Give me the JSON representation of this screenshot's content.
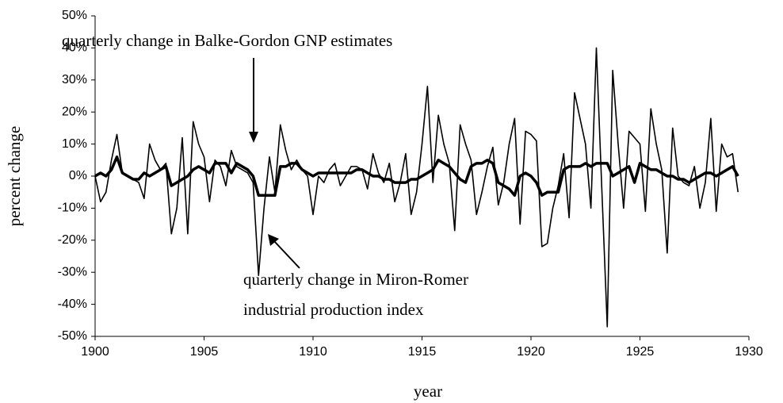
{
  "chart_data": {
    "type": "line",
    "annotations": [
      "quarterly change in Balke-Gordon GNP estimates",
      "quarterly change in Miron-Romer",
      "industrial production index"
    ],
    "xlabel": "year",
    "ylabel": "percent change",
    "xlim": [
      1900,
      1930
    ],
    "xticks": [
      1900,
      1905,
      1910,
      1915,
      1920,
      1925,
      1930
    ],
    "ylim": [
      -50,
      50
    ],
    "yticks": [
      {
        "value": -50,
        "label": "-50%"
      },
      {
        "value": -40,
        "label": "-40%"
      },
      {
        "value": -30,
        "label": "-30%"
      },
      {
        "value": -20,
        "label": "-20%"
      },
      {
        "value": -10,
        "label": "-10%"
      },
      {
        "value": 0,
        "label": "0%"
      },
      {
        "value": 10,
        "label": "10%"
      },
      {
        "value": 20,
        "label": "20%"
      },
      {
        "value": 30,
        "label": "30%"
      },
      {
        "value": 40,
        "label": "40%"
      },
      {
        "value": 50,
        "label": "50%"
      }
    ],
    "x": [
      1900,
      1900.25,
      1900.5,
      1900.75,
      1901,
      1901.25,
      1901.5,
      1901.75,
      1902,
      1902.25,
      1902.5,
      1902.75,
      1903,
      1903.25,
      1903.5,
      1903.75,
      1904,
      1904.25,
      1904.5,
      1904.75,
      1905,
      1905.25,
      1905.5,
      1905.75,
      1906,
      1906.25,
      1906.5,
      1906.75,
      1907,
      1907.25,
      1907.5,
      1907.75,
      1908,
      1908.25,
      1908.5,
      1908.75,
      1909,
      1909.25,
      1909.5,
      1909.75,
      1910,
      1910.25,
      1910.5,
      1910.75,
      1911,
      1911.25,
      1911.5,
      1911.75,
      1912,
      1912.25,
      1912.5,
      1912.75,
      1913,
      1913.25,
      1913.5,
      1913.75,
      1914,
      1914.25,
      1914.5,
      1914.75,
      1915,
      1915.25,
      1915.5,
      1915.75,
      1916,
      1916.25,
      1916.5,
      1916.75,
      1917,
      1917.25,
      1917.5,
      1917.75,
      1918,
      1918.25,
      1918.5,
      1918.75,
      1919,
      1919.25,
      1919.5,
      1919.75,
      1920,
      1920.25,
      1920.5,
      1920.75,
      1921,
      1921.25,
      1921.5,
      1921.75,
      1922,
      1922.25,
      1922.5,
      1922.75,
      1923,
      1923.25,
      1923.5,
      1923.75,
      1924,
      1924.25,
      1924.5,
      1924.75,
      1925,
      1925.25,
      1925.5,
      1925.75,
      1926,
      1926.25,
      1926.5,
      1926.75,
      1927,
      1927.25,
      1927.5,
      1927.75,
      1928,
      1928.25,
      1928.5,
      1928.75,
      1929,
      1929.25,
      1929.5
    ],
    "series": [
      {
        "color": "#000000",
        "width": 1.6,
        "values": [
          0,
          -8,
          -5,
          5,
          13,
          1,
          0,
          -1,
          -2,
          -7,
          10,
          5,
          2,
          4,
          -18,
          -10,
          12,
          -18,
          17,
          10,
          6,
          -8,
          5,
          3,
          -3,
          8,
          3,
          2,
          1,
          -2,
          -31,
          -10,
          6,
          -5,
          16,
          8,
          2,
          5,
          2,
          0,
          -12,
          0,
          -2,
          2,
          4,
          -3,
          0,
          3,
          3,
          2,
          -4,
          7,
          1,
          -2,
          4,
          -8,
          -2,
          7,
          -12,
          -5,
          10,
          28,
          -2,
          19,
          10,
          4,
          -17,
          16,
          10,
          5,
          -12,
          -5,
          3,
          9,
          -9,
          -2,
          10,
          18,
          -15,
          14,
          13,
          11,
          -22,
          -21,
          -10,
          -3,
          7,
          -13,
          26,
          18,
          10,
          -10,
          40,
          -4,
          -47,
          33,
          10,
          -10,
          14,
          12,
          10,
          -11,
          21,
          10,
          2,
          -24,
          15,
          0,
          -2,
          -3,
          3,
          -10,
          -2,
          18,
          -11,
          10,
          6,
          7,
          -5
        ]
      },
      {
        "color": "#000000",
        "width": 3.5,
        "values": [
          0,
          1,
          0,
          2,
          6,
          1,
          0,
          -1,
          -1,
          1,
          0,
          1,
          2,
          3,
          -3,
          -2,
          -1,
          0,
          2,
          3,
          2,
          1,
          4,
          4,
          4,
          1,
          4,
          3,
          2,
          0,
          -6,
          -6,
          -6,
          -6,
          3,
          3,
          4,
          4,
          2,
          1,
          0,
          1,
          1,
          1,
          1,
          1,
          1,
          1,
          2,
          2,
          1,
          0,
          0,
          -1,
          -1,
          -2,
          -2,
          -2,
          -1,
          -1,
          0,
          1,
          2,
          5,
          4,
          3,
          1,
          -1,
          -2,
          3,
          4,
          4,
          5,
          4,
          -2,
          -3,
          -4,
          -6,
          0,
          1,
          0,
          -2,
          -6,
          -5,
          -5,
          -5,
          2,
          3,
          3,
          3,
          4,
          3,
          4,
          4,
          4,
          0,
          1,
          2,
          3,
          -2,
          4,
          3,
          2,
          2,
          1,
          0,
          0,
          -1,
          -1,
          -2,
          -1,
          0,
          1,
          1,
          0,
          1,
          2,
          3,
          0
        ]
      }
    ]
  }
}
